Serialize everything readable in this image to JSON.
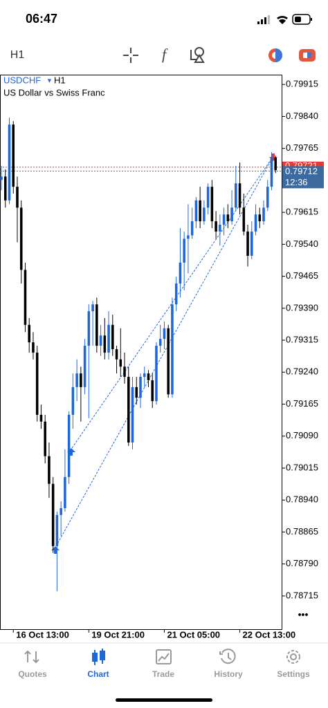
{
  "ui": {
    "time": "06:47",
    "more": "•••",
    "tabs": [
      "Quotes",
      "Chart",
      "Trade",
      "History",
      "Settings"
    ]
  },
  "chart_data": {
    "type": "candlestick",
    "title": "USDCHF",
    "timeframe": "H1",
    "subtitle": "US Dollar vs Swiss Franc",
    "up_color": "#1f66d8",
    "down_color": "#000000",
    "open": [
      0.79691,
      0.79699,
      0.79643,
      0.79821,
      0.79675,
      0.79626,
      0.7948,
      0.79351,
      0.7931,
      0.79286,
      0.7914,
      0.79124,
      0.79043,
      0.78978,
      0.78832,
      0.78905,
      0.78921,
      0.78994,
      0.7914,
      0.79205,
      0.79237,
      0.79205,
      0.79302,
      0.79383,
      0.79399,
      0.79302,
      0.79326,
      0.79286,
      0.79351,
      0.79294,
      0.7927,
      0.79253,
      0.79229,
      0.79075,
      0.79205,
      0.7918,
      0.79229,
      0.79237,
      0.79221,
      0.79172,
      0.79302,
      0.79318,
      0.79343,
      0.79188,
      0.79399,
      0.79448,
      0.79497,
      0.79553,
      0.79561,
      0.79594,
      0.79643,
      0.79594,
      0.79626,
      0.79675,
      0.79594,
      0.7957,
      0.79586,
      0.7961,
      0.79594,
      0.79626,
      0.79683,
      0.79626,
      0.7957,
      0.79513,
      0.7957,
      0.7961,
      0.79594,
      0.79626,
      0.79675,
      0.79743
    ],
    "high": [
      0.79724,
      0.79716,
      0.79837,
      0.79829,
      0.79699,
      0.79643,
      0.79497,
      0.79367,
      0.79334,
      0.79302,
      0.79164,
      0.7914,
      0.79075,
      0.78994,
      0.78913,
      0.78937,
      0.79059,
      0.79148,
      0.79237,
      0.7927,
      0.79253,
      0.79318,
      0.79399,
      0.79407,
      0.79415,
      0.79351,
      0.79367,
      0.79383,
      0.79375,
      0.79302,
      0.79343,
      0.79286,
      0.79253,
      0.79229,
      0.79229,
      0.79237,
      0.79253,
      0.79245,
      0.79237,
      0.7931,
      0.79351,
      0.79359,
      0.79351,
      0.79415,
      0.79464,
      0.79578,
      0.7957,
      0.79634,
      0.79626,
      0.79651,
      0.79675,
      0.79643,
      0.79683,
      0.79691,
      0.79618,
      0.7961,
      0.79626,
      0.79634,
      0.79667,
      0.79724,
      0.79732,
      0.79659,
      0.79586,
      0.79594,
      0.79634,
      0.79626,
      0.79643,
      0.79691,
      0.79756,
      0.79748
    ],
    "low": [
      0.79667,
      0.79626,
      0.79634,
      0.79659,
      0.79545,
      0.79448,
      0.79334,
      0.79286,
      0.7927,
      0.79124,
      0.79107,
      0.79026,
      0.78945,
      0.78816,
      0.78726,
      0.78856,
      0.78913,
      0.78978,
      0.79107,
      0.79172,
      0.79124,
      0.79188,
      0.79132,
      0.79302,
      0.79286,
      0.79278,
      0.7927,
      0.7927,
      0.79278,
      0.79237,
      0.79229,
      0.79213,
      0.79067,
      0.79059,
      0.79164,
      0.79156,
      0.79205,
      0.79205,
      0.79156,
      0.79164,
      0.79286,
      0.79294,
      0.7918,
      0.7918,
      0.79383,
      0.79415,
      0.79432,
      0.79472,
      0.79553,
      0.79578,
      0.79578,
      0.79586,
      0.7961,
      0.79578,
      0.79553,
      0.79537,
      0.79561,
      0.79578,
      0.79586,
      0.79618,
      0.7961,
      0.79561,
      0.79488,
      0.79505,
      0.79561,
      0.79578,
      0.79586,
      0.79618,
      0.79667,
      0.79707
    ],
    "close": [
      0.79699,
      0.79643,
      0.79821,
      0.79675,
      0.79626,
      0.7948,
      0.79351,
      0.7931,
      0.79286,
      0.7914,
      0.79124,
      0.79043,
      0.78978,
      0.78832,
      0.78905,
      0.78921,
      0.78994,
      0.7914,
      0.79205,
      0.79237,
      0.79205,
      0.79302,
      0.79383,
      0.79399,
      0.79302,
      0.79326,
      0.79286,
      0.79351,
      0.79294,
      0.7927,
      0.79253,
      0.79229,
      0.79075,
      0.79205,
      0.7918,
      0.79229,
      0.79237,
      0.79221,
      0.79172,
      0.79302,
      0.79318,
      0.79343,
      0.79188,
      0.79399,
      0.79448,
      0.79497,
      0.79553,
      0.79561,
      0.79594,
      0.79643,
      0.79594,
      0.79626,
      0.79675,
      0.79594,
      0.7957,
      0.79586,
      0.7961,
      0.79594,
      0.79626,
      0.79683,
      0.79626,
      0.7957,
      0.79513,
      0.7957,
      0.7961,
      0.79594,
      0.79626,
      0.79675,
      0.79743,
      0.79714
    ],
    "xlim": [
      -0.35,
      70.7
    ],
    "xticks": [
      {
        "value": 3,
        "label": "16 Oct 13:00"
      },
      {
        "value": 22,
        "label": "19 Oct 21:00"
      },
      {
        "value": 41,
        "label": "21 Oct 05:00"
      },
      {
        "value": 60,
        "label": "22 Oct 13:00"
      }
    ],
    "ylim": [
      0.78637,
      0.79938
    ],
    "yticks": [
      0.79915,
      {
        "value": 0.7984,
        "label": "0.79840"
      },
      0.79765,
      0.79615,
      {
        "value": 0.7954,
        "label": "0.79540"
      },
      0.79465,
      {
        "value": 0.7939,
        "label": "0.79390"
      },
      0.79315,
      {
        "value": 0.7924,
        "label": "0.79240"
      },
      0.79165,
      {
        "value": 0.7909,
        "label": "0.79090"
      },
      0.79015,
      {
        "value": 0.7894,
        "label": "0.78940"
      },
      0.78865,
      {
        "value": 0.7879,
        "label": "0.78790"
      },
      0.78715
    ],
    "ask": 0.79721,
    "bid": 0.79712,
    "ask_color": "#e53935",
    "bid_color": "#3d6a9e",
    "bar_timer": "12:36"
  }
}
